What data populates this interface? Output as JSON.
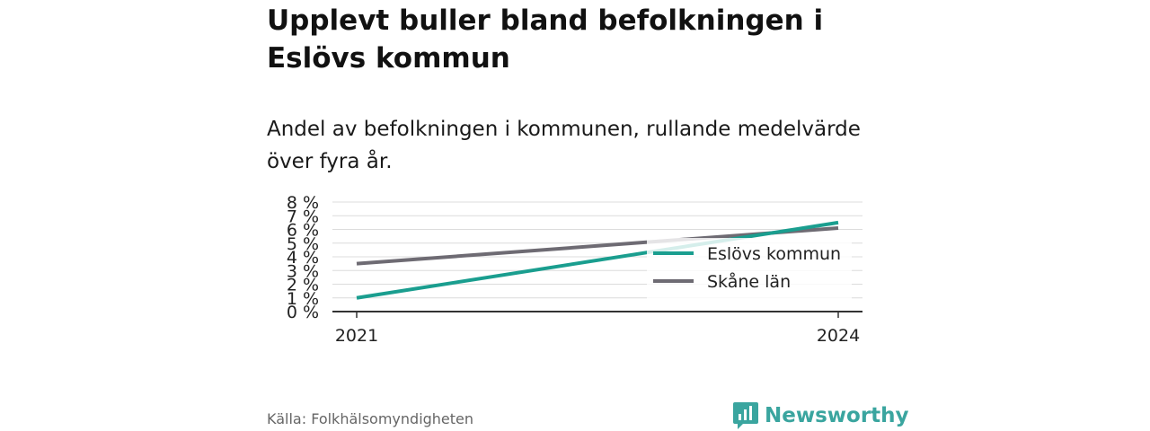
{
  "title": "Upplevt buller bland befolkningen i Eslövs kommun",
  "subtitle": "Andel av befolkningen i kommunen, rullande medelvärde över fyra år.",
  "source": "Källa: Folkhälsomyndigheten",
  "brand": {
    "name": "Newsworthy",
    "icon": "newsworthy-logo-icon",
    "color": "#3aa59f"
  },
  "chart_data": {
    "type": "line",
    "x": [
      2021,
      2024
    ],
    "x_tick_labels": [
      "2021",
      "2024"
    ],
    "y_tick_labels": [
      "0 %",
      "1 %",
      "2 %",
      "3 %",
      "4 %",
      "5 %",
      "6 %",
      "7 %",
      "8 %"
    ],
    "ylim": [
      0,
      8
    ],
    "grid": true,
    "legend_position": "right",
    "series": [
      {
        "name": "Eslövs kommun",
        "values": [
          1.0,
          6.5
        ],
        "color": "#1a9e8f"
      },
      {
        "name": "Skåne län",
        "values": [
          3.5,
          6.1
        ],
        "color": "#6e6b73"
      }
    ]
  }
}
